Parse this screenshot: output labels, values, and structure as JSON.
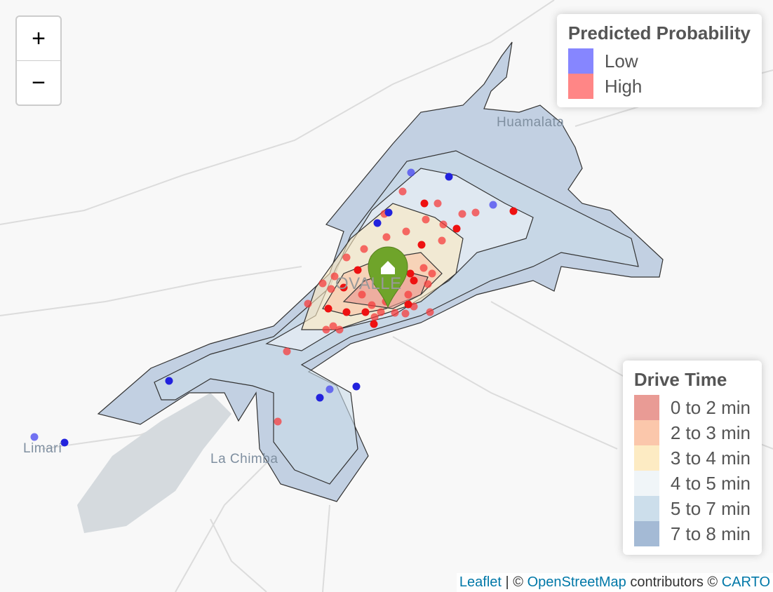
{
  "map": {
    "place_labels": [
      "Huamalata",
      "La Chimba",
      "Limarí",
      "OVALLE"
    ]
  },
  "zoom_controls": {
    "zoom_in": "+",
    "zoom_out": "−"
  },
  "legends": {
    "probability": {
      "title": "Predicted Probability",
      "items": [
        {
          "label": "Low",
          "color": "#8080ff"
        },
        {
          "label": "High",
          "color": "#ff8080"
        }
      ]
    },
    "drive_time": {
      "title": "Drive Time",
      "items": [
        {
          "label": "0 to 2 min",
          "color": "#e8968f"
        },
        {
          "label": "2 to 3 min",
          "color": "#fbc4a6"
        },
        {
          "label": "3 to 4 min",
          "color": "#fdeac0"
        },
        {
          "label": "4 to 5 min",
          "color": "#eff4f8"
        },
        {
          "label": "5 to 7 min",
          "color": "#c9dcea"
        },
        {
          "label": "7 to 8 min",
          "color": "#9fb6d3"
        }
      ]
    }
  },
  "attribution": {
    "leaflet": "Leaflet",
    "sep": "| ©",
    "osm": "OpenStreetMap",
    "contrib": "contributors ©",
    "carto": "CARTO"
  }
}
